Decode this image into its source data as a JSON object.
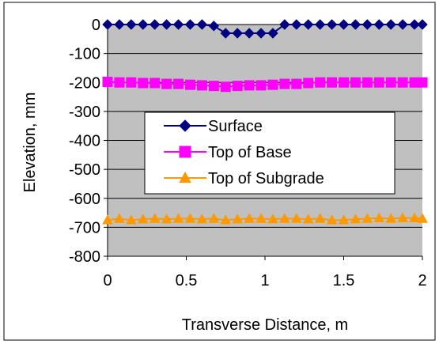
{
  "chart_data": {
    "type": "line",
    "title": "",
    "xlabel": "Transverse Distance, m",
    "ylabel": "Elevation, mm",
    "xlim": [
      0,
      2
    ],
    "ylim": [
      -800,
      0
    ],
    "x_ticks": [
      0,
      0.5,
      1,
      1.5,
      2
    ],
    "x_tick_labels": [
      "0",
      "0.5",
      "1",
      "1.5",
      "2"
    ],
    "y_ticks": [
      0,
      -100,
      -200,
      -300,
      -400,
      -500,
      -600,
      -700,
      -800
    ],
    "y_tick_labels": [
      "0",
      "-100",
      "-200",
      "-300",
      "-400",
      "-500",
      "-600",
      "-700",
      "-800"
    ],
    "grid": "horizontal",
    "legend_position": "center",
    "plot_background": "#c0c0c0",
    "x": [
      0,
      0.075,
      0.15,
      0.225,
      0.3,
      0.375,
      0.45,
      0.525,
      0.6,
      0.675,
      0.75,
      0.825,
      0.9,
      0.975,
      1.05,
      1.125,
      1.2,
      1.275,
      1.35,
      1.425,
      1.5,
      1.575,
      1.65,
      1.725,
      1.8,
      1.875,
      1.95,
      2
    ],
    "series": [
      {
        "name": "Surface",
        "color": "#000080",
        "marker": "diamond",
        "values": [
          0,
          0,
          0,
          0,
          0,
          0,
          0,
          0,
          0,
          -5,
          -30,
          -30,
          -30,
          -30,
          -30,
          0,
          0,
          0,
          0,
          0,
          0,
          0,
          0,
          0,
          0,
          0,
          0,
          0
        ]
      },
      {
        "name": "Top of Base",
        "color": "#ff00ff",
        "marker": "square",
        "values": [
          -198,
          -200,
          -200,
          -202,
          -202,
          -205,
          -205,
          -208,
          -210,
          -212,
          -215,
          -212,
          -210,
          -210,
          -208,
          -205,
          -205,
          -202,
          -200,
          -200,
          -200,
          -200,
          -200,
          -200,
          -200,
          -200,
          -200,
          -200
        ]
      },
      {
        "name": "Top of Subgrade",
        "color": "#ff9900",
        "marker": "triangle",
        "values": [
          -675,
          -670,
          -675,
          -672,
          -670,
          -672,
          -670,
          -670,
          -672,
          -670,
          -675,
          -672,
          -670,
          -670,
          -672,
          -670,
          -670,
          -672,
          -670,
          -675,
          -675,
          -672,
          -670,
          -668,
          -670,
          -668,
          -668,
          -670
        ]
      }
    ]
  }
}
